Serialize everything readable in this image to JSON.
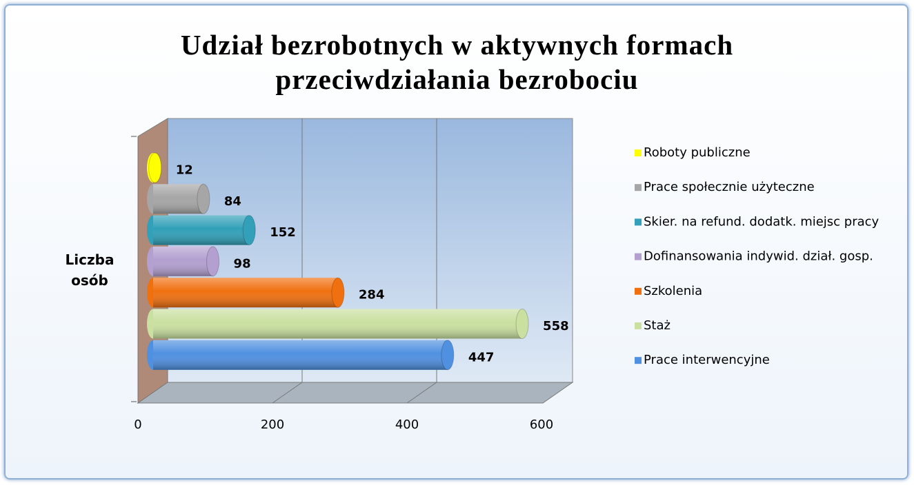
{
  "chart_data": {
    "type": "bar3d",
    "title": "Udział bezrobotnych w aktywnych formach przeciwdziałania bezrobociu",
    "categories": [
      "Liczba osób"
    ],
    "series": [
      {
        "name": "Roboty publiczne",
        "color": "#ffff00",
        "values": [
          12
        ]
      },
      {
        "name": "Prace społecznie użyteczne",
        "color": "#a6a6a6",
        "values": [
          84
        ]
      },
      {
        "name": "Skier. na refund. dodatk. miejsc pracy",
        "color": "#31a0b8",
        "values": [
          152
        ]
      },
      {
        "name": "Dofinansowania indywid. dział. gosp.",
        "color": "#b39fd0",
        "values": [
          98
        ]
      },
      {
        "name": "Szkolenia",
        "color": "#f07010",
        "values": [
          284
        ]
      },
      {
        "name": "Staż",
        "color": "#c9e0a0",
        "values": [
          558
        ]
      },
      {
        "name": "Prace interwencyjne",
        "color": "#4f90e0",
        "values": [
          447
        ]
      }
    ],
    "xlim": [
      0,
      600
    ],
    "xticks": [
      0,
      200,
      400,
      600
    ],
    "grid": true,
    "legend": "right"
  }
}
